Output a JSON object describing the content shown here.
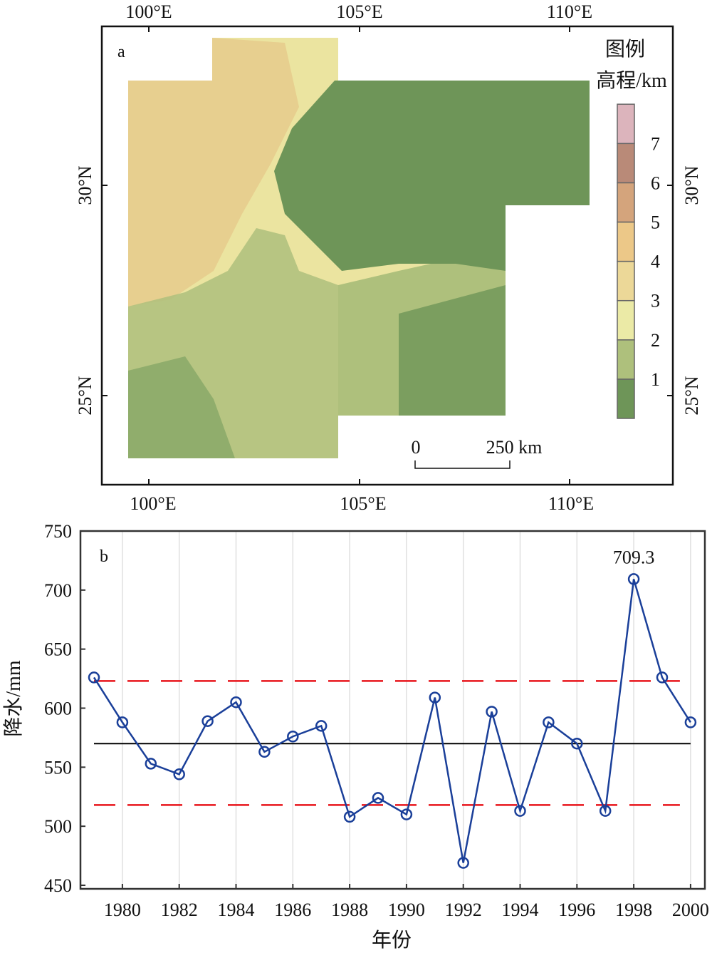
{
  "panel_a": {
    "label": "a",
    "top_lon_ticks": [
      "100°E",
      "105°E",
      "110°E"
    ],
    "bottom_lon_ticks": [
      "100°E",
      "105°E",
      "110°E"
    ],
    "left_lat_ticks": [
      "30°N",
      "25°N"
    ],
    "right_lat_ticks": [
      "30°N",
      "25°N"
    ],
    "legend_title": "图例",
    "legend_unit": "高程/km",
    "legend_ticks": [
      "1",
      "2",
      "3",
      "4",
      "5",
      "6",
      "7"
    ],
    "legend_colors": [
      "#6e9558",
      "#aec07c",
      "#ebeaa6",
      "#ecd898",
      "#ecc888",
      "#d4a47c",
      "#b98a78",
      "#dcb4bc"
    ],
    "scale_zero": "0",
    "scale_label": "250 km"
  },
  "chart_data": {
    "type": "line",
    "panel_label": "b",
    "xlabel": "年份",
    "ylabel": "降水/mm",
    "ylim": [
      450,
      750
    ],
    "xlim": [
      1979,
      2000
    ],
    "yticks": [
      "450",
      "500",
      "550",
      "600",
      "650",
      "700",
      "750"
    ],
    "xticks": [
      "1980",
      "1982",
      "1984",
      "1986",
      "1988",
      "1990",
      "1992",
      "1994",
      "1996",
      "1998",
      "2000"
    ],
    "grid": "vertical",
    "x": [
      1979,
      1980,
      1981,
      1982,
      1983,
      1984,
      1985,
      1986,
      1987,
      1988,
      1989,
      1990,
      1991,
      1992,
      1993,
      1994,
      1995,
      1996,
      1997,
      1998,
      1999,
      2000
    ],
    "values": [
      626,
      588,
      553,
      544,
      589,
      605,
      563,
      576,
      585,
      508,
      524,
      510,
      609,
      469,
      597,
      513,
      588,
      570,
      513,
      709.3,
      626,
      588
    ],
    "mean": 570,
    "upper_bound": 623,
    "lower_bound": 518,
    "annotation": {
      "year": 1998,
      "text": "709.3"
    },
    "colors": {
      "series": "#1a3f99",
      "mean": "#000000",
      "bounds": "#e8141b"
    }
  }
}
